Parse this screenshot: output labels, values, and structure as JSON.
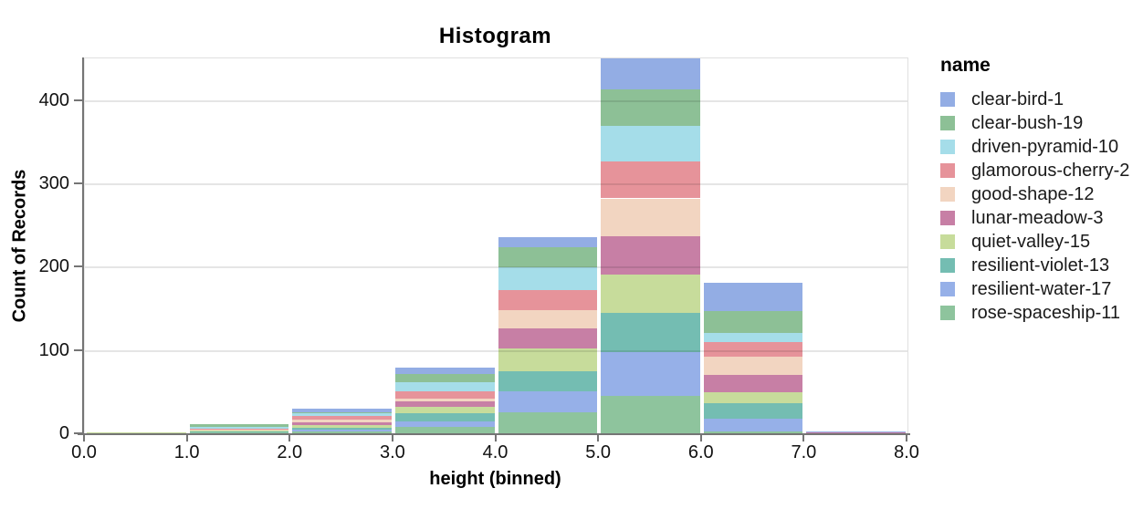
{
  "chart_data": {
    "type": "bar",
    "stacked": true,
    "title": "Histogram",
    "xlabel": "height (binned)",
    "ylabel": "Count of Records",
    "bin_edges": [
      0,
      1,
      2,
      3,
      4,
      5,
      6,
      7,
      8
    ],
    "x_tick_labels": [
      "0.0",
      "1.0",
      "2.0",
      "3.0",
      "4.0",
      "5.0",
      "6.0",
      "7.0",
      "8.0"
    ],
    "y_ticks": [
      0,
      100,
      200,
      300,
      400
    ],
    "ylim": [
      0,
      451
    ],
    "grid": true,
    "legend_position": "right",
    "legend_title": "name",
    "stack_order": "first series on top, last series at bottom",
    "series": [
      {
        "name": "clear-bird-1",
        "color": "#93ade4",
        "values": [
          0,
          0,
          5,
          8,
          13,
          37,
          34,
          1
        ]
      },
      {
        "name": "clear-bush-19",
        "color": "#8dc096",
        "values": [
          0,
          3,
          1,
          10,
          24,
          44,
          27,
          0
        ]
      },
      {
        "name": "driven-pyramid-10",
        "color": "#a5dde9",
        "values": [
          0,
          2,
          3,
          11,
          27,
          43,
          10,
          0
        ]
      },
      {
        "name": "glamorous-cherry-2",
        "color": "#e6939a",
        "values": [
          0,
          2,
          4,
          8,
          24,
          44,
          18,
          0
        ]
      },
      {
        "name": "good-shape-12",
        "color": "#f2d5c1",
        "values": [
          0,
          1,
          4,
          4,
          22,
          45,
          22,
          0
        ]
      },
      {
        "name": "lunar-meadow-3",
        "color": "#c77fa5",
        "values": [
          0,
          0,
          3,
          6,
          24,
          46,
          21,
          1
        ]
      },
      {
        "name": "quiet-valley-15",
        "color": "#c7dc9b",
        "values": [
          1,
          1,
          3,
          8,
          27,
          46,
          13,
          0
        ]
      },
      {
        "name": "resilient-violet-13",
        "color": "#74bdb2",
        "values": [
          0,
          1,
          2,
          10,
          25,
          47,
          18,
          0
        ]
      },
      {
        "name": "resilient-water-17",
        "color": "#96b0e8",
        "values": [
          0,
          0,
          3,
          6,
          25,
          53,
          16,
          1
        ]
      },
      {
        "name": "rose-spaceship-11",
        "color": "#8ec49d",
        "values": [
          1,
          2,
          3,
          9,
          26,
          46,
          3,
          0
        ]
      }
    ],
    "bin_totals": [
      2,
      12,
      31,
      80,
      237,
      451,
      182,
      3
    ]
  }
}
